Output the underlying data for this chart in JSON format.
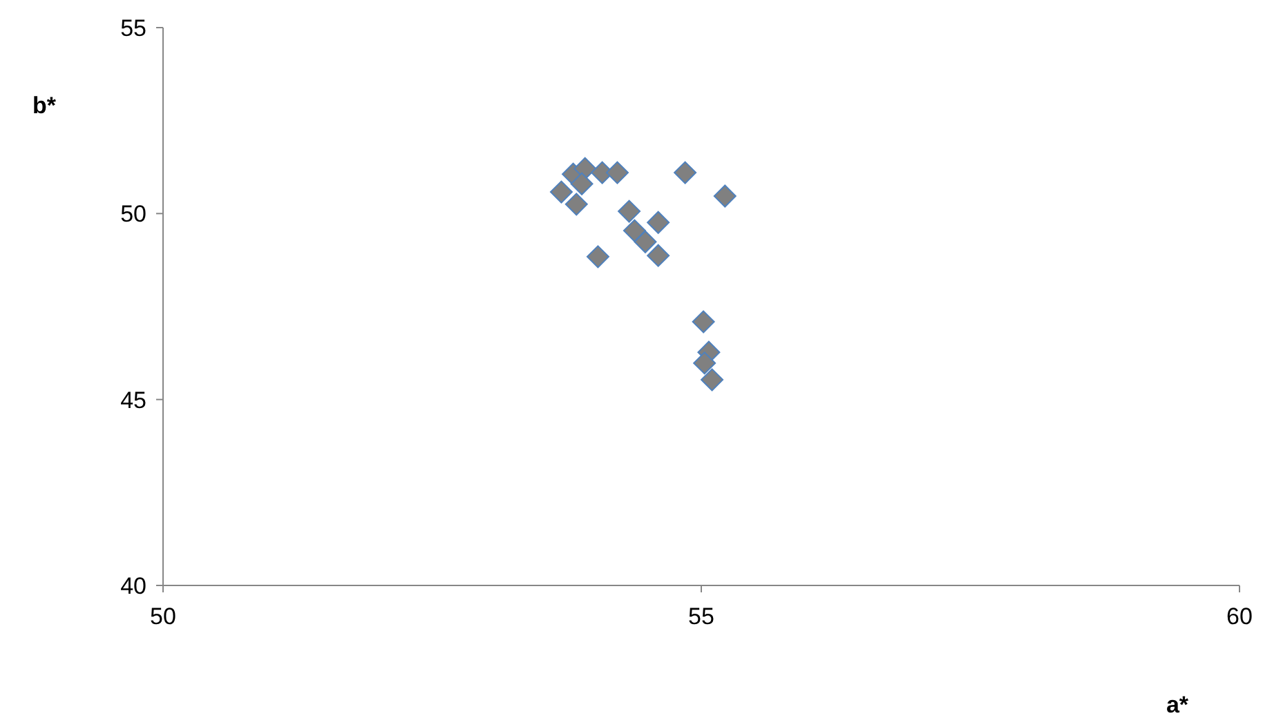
{
  "chart_data": {
    "type": "scatter",
    "xlabel": "a*",
    "ylabel": "b*",
    "x": [
      53.81,
      53.92,
      54.08,
      54.22,
      53.89,
      53.7,
      53.84,
      54.85,
      55.22,
      54.33,
      54.6,
      54.38,
      54.48,
      54.6,
      54.04,
      55.02,
      55.07,
      55.03,
      55.1
    ],
    "series": [
      {
        "color": "#808080",
        "values": [
          51.06,
          51.21,
          51.1,
          51.1,
          50.8,
          50.58,
          50.25,
          51.1,
          50.47,
          50.06,
          49.76,
          49.54,
          49.24,
          48.87,
          48.84,
          47.09,
          46.27,
          45.98,
          45.53
        ]
      }
    ],
    "xlim": [
      50,
      60
    ],
    "xticks": [
      50,
      55,
      60
    ],
    "ylim": [
      40,
      55
    ],
    "yticks": [
      40,
      45,
      50,
      55
    ],
    "marker": "diamond",
    "grid": false
  }
}
